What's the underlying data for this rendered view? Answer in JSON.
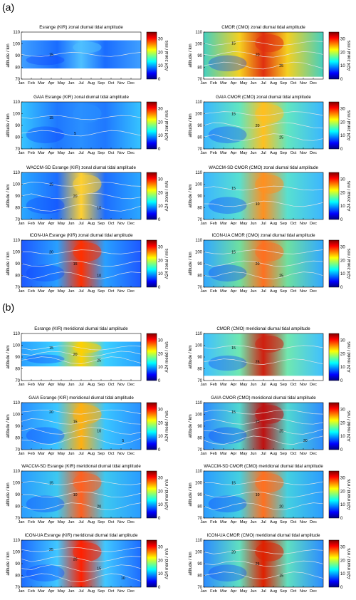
{
  "sections": [
    {
      "label": "(a)"
    },
    {
      "label": "(b)"
    }
  ],
  "chart_data": [
    {
      "type": "heatmap",
      "title": "Esrange (KIR) zonal diurnal tidal amplitude",
      "ylabel": "altitude / km",
      "colorbar_label": "A24 zonal / m/s",
      "coverage": [
        79,
        103
      ],
      "contours": [
        {
          "label": "15"
        }
      ]
    },
    {
      "type": "heatmap",
      "title": "CMOR (CMO) zonal diurnal tidal amplitude",
      "ylabel": "altitude / km",
      "colorbar_label": "A24 zonal / m/s",
      "coverage": [
        72,
        110
      ],
      "contours": [
        {
          "label": "15"
        },
        {
          "label": "20"
        },
        {
          "label": "25"
        }
      ]
    },
    {
      "type": "heatmap",
      "title": "GAIA Esrange (KIR) zonal diurnal tidal amplitude",
      "ylabel": "altitude / km",
      "colorbar_label": "A24 zonal / m/s",
      "coverage": [
        70,
        110
      ],
      "contours": [
        {
          "label": "15"
        },
        {
          "label": "5"
        }
      ]
    },
    {
      "type": "heatmap",
      "title": "GAIA CMOR (CMO) zonal diurnal tidal amplitude",
      "ylabel": "altitude / km",
      "colorbar_label": "A24 zonal / m/s",
      "coverage": [
        70,
        110
      ],
      "contours": [
        {
          "label": "15"
        },
        {
          "label": "20"
        },
        {
          "label": "25"
        }
      ]
    },
    {
      "type": "heatmap",
      "title": "WACCM-SD Esrange (KIR) zonal diurnal tidal amplitude",
      "ylabel": "altitude / km",
      "colorbar_label": "A24 zonal / m/s",
      "coverage": [
        70,
        110
      ],
      "contours": [
        {
          "label": "15"
        },
        {
          "label": "20"
        },
        {
          "label": "10"
        }
      ]
    },
    {
      "type": "heatmap",
      "title": "WACCM-SD CMOR (CMO) zonal diurnal tidal amplitude",
      "ylabel": "altitude / km",
      "colorbar_label": "A24 zonal / m/s",
      "coverage": [
        70,
        110
      ],
      "contours": [
        {
          "label": "15"
        },
        {
          "label": "10"
        }
      ]
    },
    {
      "type": "heatmap",
      "title": "ICON-UA Esrange (KIR) zonal diurnal tidal amplitude",
      "ylabel": "altitude / km",
      "colorbar_label": "A24 zonal / m/s",
      "coverage": [
        70,
        110
      ],
      "contours": [
        {
          "label": "20"
        },
        {
          "label": "15"
        },
        {
          "label": "10"
        }
      ]
    },
    {
      "type": "heatmap",
      "title": "ICON-UA CMOR (CMO) zonal diurnal tidal amplitude",
      "ylabel": "altitude / km",
      "colorbar_label": "A24 zonal / m/s",
      "coverage": [
        70,
        110
      ],
      "contours": [
        {
          "label": "15"
        },
        {
          "label": "20"
        },
        {
          "label": "25"
        }
      ]
    },
    {
      "type": "heatmap",
      "title": "Esrange (KIR) meridional diurnal tidal amplitude",
      "ylabel": "altitude / km",
      "colorbar_label": "A24 merid / m/s",
      "coverage": [
        82,
        103
      ],
      "contours": [
        {
          "label": "15"
        },
        {
          "label": "20"
        },
        {
          "label": "25"
        }
      ]
    },
    {
      "type": "heatmap",
      "title": "CMOR (CMO) meridional diurnal tidal amplitude",
      "ylabel": "altitude / km",
      "colorbar_label": "A24 merid / m/s",
      "coverage": [
        74,
        110
      ],
      "contours": [
        {
          "label": "15"
        },
        {
          "label": "25"
        }
      ]
    },
    {
      "type": "heatmap",
      "title": "GAIA Esrange (KIR) meridional diurnal tidal amplitude",
      "ylabel": "altitude / km",
      "colorbar_label": "A24 merid / m/s",
      "coverage": [
        70,
        110
      ],
      "contours": [
        {
          "label": "20"
        },
        {
          "label": "15"
        },
        {
          "label": "10"
        },
        {
          "label": "5"
        }
      ]
    },
    {
      "type": "heatmap",
      "title": "GAIA CMOR (CMO) meridional diurnal tidal amplitude",
      "ylabel": "altitude / km",
      "colorbar_label": "A24 merid / m/s",
      "coverage": [
        70,
        110
      ],
      "contours": [
        {
          "label": "15"
        },
        {
          "label": "20"
        },
        {
          "label": "25"
        },
        {
          "label": "30"
        }
      ]
    },
    {
      "type": "heatmap",
      "title": "WACCM-SD Esrange (KIR) meridional diurnal tidal amplitude",
      "ylabel": "altitude / km",
      "colorbar_label": "A24 merid / m/s",
      "coverage": [
        70,
        110
      ],
      "contours": [
        {
          "label": "15"
        },
        {
          "label": "10"
        },
        {
          "label": "20"
        }
      ]
    },
    {
      "type": "heatmap",
      "title": "WACCM-SD CMOR (CMO) meridional diurnal tidal amplitude",
      "ylabel": "altitude / km",
      "colorbar_label": "A24 merid / m/s",
      "coverage": [
        70,
        110
      ],
      "contours": [
        {
          "label": "15"
        },
        {
          "label": "10"
        },
        {
          "label": "20"
        }
      ]
    },
    {
      "type": "heatmap",
      "title": "ICON-UA Esrange (KIR) meridional diurnal tidal amplitude",
      "ylabel": "altitude / km",
      "colorbar_label": "A24 merid / m/s",
      "coverage": [
        70,
        110
      ],
      "contours": [
        {
          "label": "25"
        },
        {
          "label": "20"
        },
        {
          "label": "15"
        },
        {
          "label": "10"
        }
      ]
    },
    {
      "type": "heatmap",
      "title": "ICON-UA CMOR (CMO) meridional diurnal tidal amplitude",
      "ylabel": "altitude / km",
      "colorbar_label": "A24 merid / m/s",
      "coverage": [
        70,
        110
      ],
      "contours": [
        {
          "label": "20"
        },
        {
          "label": "25"
        },
        {
          "label": "15"
        }
      ]
    }
  ],
  "common": {
    "months": [
      "Jan",
      "Feb",
      "Mar",
      "Apr",
      "May",
      "Jun",
      "Jul",
      "Aug",
      "Sep",
      "Oct",
      "Nov",
      "Dec"
    ],
    "yticks": [
      70,
      80,
      90,
      100,
      110
    ],
    "ylim": [
      70,
      110
    ],
    "cticks": [
      0,
      10,
      20,
      30
    ],
    "clim": [
      0,
      35
    ],
    "colormap": [
      "#00007f",
      "#0000ff",
      "#007fff",
      "#00ffff",
      "#7fff7f",
      "#ffff00",
      "#ff7f00",
      "#ff0000",
      "#7f0000"
    ]
  }
}
